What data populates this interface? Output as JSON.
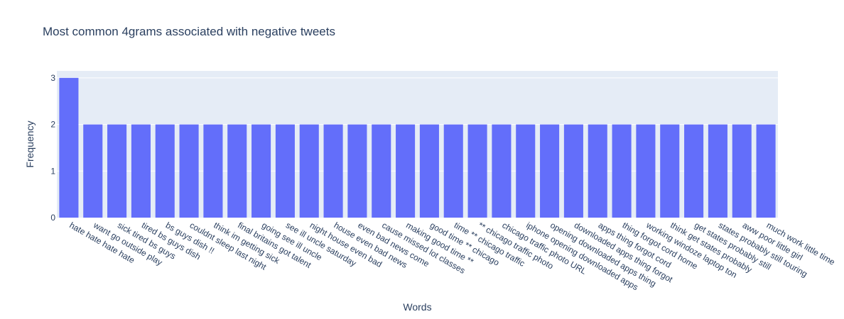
{
  "chart_data": {
    "type": "bar",
    "title": "Most common 4grams associated with negative tweets",
    "xlabel": "Words",
    "ylabel": "Frequency",
    "ylim": [
      0,
      3.15
    ],
    "yticks": [
      0,
      1,
      2,
      3
    ],
    "grid": true,
    "colors": {
      "bar": "#636efa",
      "plot_bg": "#e5ecf6",
      "grid": "#ffffff",
      "text": "#2a3f5f"
    },
    "categories": [
      "hate hate hate hate",
      "want go outside play",
      "sick tired bs guys",
      "tired bs guys dish",
      "bs guys dish !!",
      "couldnt sleep last night",
      "think im getting sick",
      "final britains got talent",
      "going see ill uncle",
      "see ill uncle saturday",
      "night house even bad",
      "house even bad news",
      "even bad news come",
      "cause missed lot classes",
      "making good time **",
      "good time ** chicago",
      "time ** chicago traffic",
      "** chicago traffic photo",
      "chicago traffic photo URL",
      "iphone opening downloaded apps",
      "opening downloaded apps thing",
      "downloaded apps thing forgot",
      "apps thing forgot cord",
      "thing forgot cord home",
      "working windoze laptop ton",
      "think get states probably",
      "get states probably still",
      "states probably still touring",
      "aww poor little girl",
      "much work little time"
    ],
    "values": [
      3,
      2,
      2,
      2,
      2,
      2,
      2,
      2,
      2,
      2,
      2,
      2,
      2,
      2,
      2,
      2,
      2,
      2,
      2,
      2,
      2,
      2,
      2,
      2,
      2,
      2,
      2,
      2,
      2,
      2
    ]
  }
}
